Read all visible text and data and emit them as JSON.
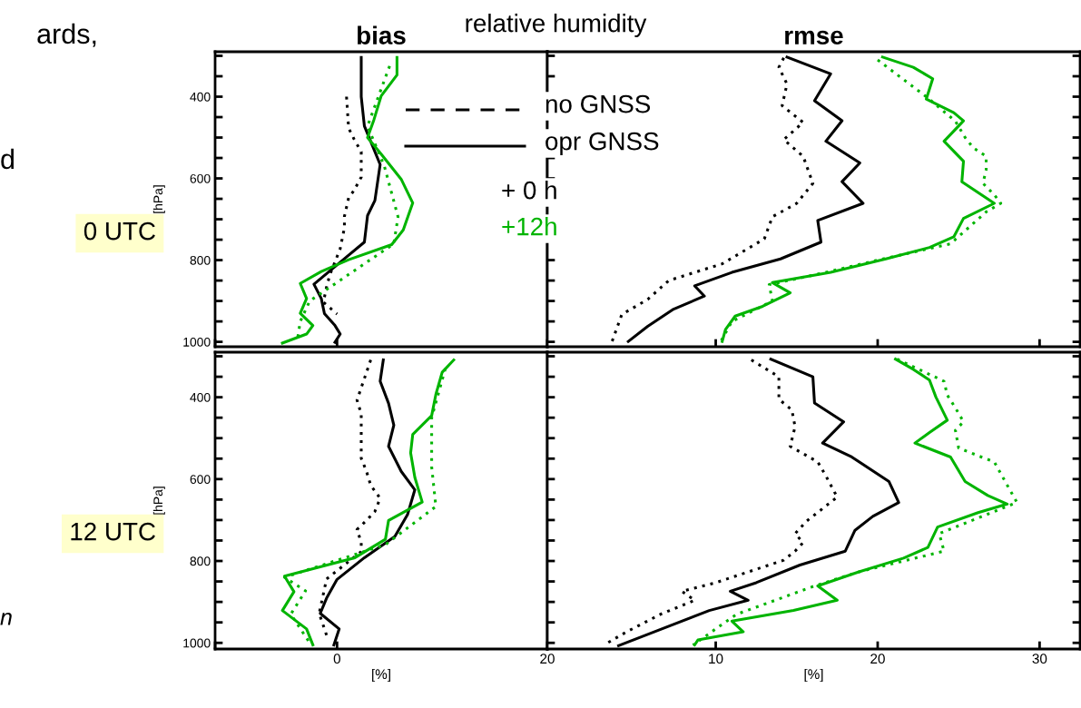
{
  "chart_data": [
    {
      "type": "line",
      "title": "bias",
      "ylabel": "[hPa]",
      "xlim": [
        -11.6,
        20
      ],
      "xticks": [
        {
          "value": -11.6,
          "label": null
        },
        0,
        20
      ],
      "ylim": [
        1012,
        290
      ],
      "yticks": [
        {
          "value": 300,
          "label": null
        },
        {
          "value": 350,
          "label": null
        },
        400,
        {
          "value": 450,
          "label": null
        },
        {
          "value": 500,
          "label": null
        },
        {
          "value": 550,
          "label": null
        },
        600,
        {
          "value": 650,
          "label": null
        },
        {
          "value": 700,
          "label": null
        },
        {
          "value": 750,
          "label": null
        },
        800,
        {
          "value": 850,
          "label": null
        },
        {
          "value": 900,
          "label": null
        },
        {
          "value": 950,
          "label": null
        },
        1000
      ],
      "tick_labels": "y",
      "grid": false,
      "legend": false,
      "annotations": [
        "relative humidity",
        "no GNSS",
        "opr GNSS",
        "+ 0 h",
        "+12h",
        "0 UTC",
        "ards,",
        "d"
      ],
      "series": [
        {
          "color": "#000000",
          "line_style": "solid",
          "x": [
            2.3,
            2.3,
            2.6,
            4.1,
            3.6,
            2.9,
            2.6,
            0.87,
            -2.2,
            -1.5,
            -1.2,
            -0.2,
            0.3,
            -0.2
          ],
          "values": [
            304,
            400,
            472,
            566,
            654,
            691,
            756,
            793,
            859,
            894,
            931,
            960,
            981,
            1001
          ]
        },
        {
          "color": "#000000",
          "line_style": "dashed",
          "x": [
            0.9,
            1.1,
            1.6,
            2.3,
            2.3,
            1.6,
            1.1,
            0.7,
            0.7,
            0.3,
            -0.7,
            -1.0,
            -1.3,
            0.0
          ],
          "values": [
            400,
            477,
            503,
            535,
            597,
            630,
            648,
            693,
            721,
            772,
            837,
            866,
            903,
            932
          ]
        },
        {
          "color": "#00b400",
          "line_style": "solid",
          "x": [
            5.7,
            5.7,
            4.2,
            3.5,
            2.9,
            4.3,
            6.1,
            7.2,
            6.3,
            5.2,
            1.1,
            -1.5,
            -3.5,
            -2.9,
            -3.5,
            -2.3,
            -2.9,
            -5.2
          ],
          "values": [
            304,
            347,
            398,
            457,
            500,
            544,
            602,
            660,
            726,
            762,
            799,
            828,
            857,
            894,
            930,
            960,
            981,
            1003
          ]
        },
        {
          "color": "#00b400",
          "line_style": "dashed",
          "x": [
            5.0,
            4.1,
            2.9,
            4.5,
            5.8,
            5.4,
            -2.6,
            -3.5,
            -3.8
          ],
          "values": [
            325,
            388,
            472,
            570,
            694,
            760,
            900,
            950,
            1000
          ]
        }
      ]
    },
    {
      "type": "line",
      "title": "rmse",
      "xlim": [
        -0.4,
        32.5
      ],
      "xticks": [
        10,
        20,
        30
      ],
      "ylim": [
        1012,
        290
      ],
      "yticks": [
        {
          "value": 300,
          "label": null
        },
        {
          "value": 350,
          "label": null
        },
        {
          "value": 400,
          "label": null
        },
        {
          "value": 450,
          "label": null
        },
        {
          "value": 500,
          "label": null
        },
        {
          "value": 550,
          "label": null
        },
        {
          "value": 600,
          "label": null
        },
        {
          "value": 650,
          "label": null
        },
        {
          "value": 700,
          "label": null
        },
        {
          "value": 750,
          "label": null
        },
        {
          "value": 800,
          "label": null
        },
        {
          "value": 850,
          "label": null
        },
        {
          "value": 900,
          "label": null
        },
        {
          "value": 950,
          "label": null
        },
        {
          "value": 1000,
          "label": null
        }
      ],
      "tick_labels": false,
      "grid": false,
      "legend": false,
      "series": [
        {
          "color": "#000000",
          "line_style": "solid",
          "x": [
            14.4,
            17.1,
            16.1,
            17.8,
            16.8,
            18.9,
            17.8,
            19.1,
            16.3,
            16.5,
            14.0,
            11.0,
            8.7,
            9.3,
            7.4,
            5.8,
            4.6
          ],
          "values": [
            303,
            344,
            410,
            459,
            509,
            562,
            608,
            661,
            703,
            756,
            797,
            830,
            863,
            888,
            920,
            962,
            999
          ]
        },
        {
          "color": "#000000",
          "line_style": "dashed",
          "x": [
            14.2,
            13.9,
            14.4,
            14.1,
            15.4,
            14.2,
            15.4,
            16.0,
            15.0,
            13.5,
            13.0,
            10.4,
            7.1,
            5.8,
            4.2,
            3.9,
            3.6
          ],
          "values": [
            305,
            328,
            369,
            422,
            463,
            505,
            546,
            612,
            661,
            694,
            748,
            809,
            850,
            896,
            933,
            966,
            999
          ]
        },
        {
          "color": "#00b400",
          "line_style": "solid",
          "x": [
            20.3,
            22.2,
            23.4,
            23.0,
            24.7,
            25.3,
            24.1,
            25.3,
            25.2,
            26.4,
            27.2,
            25.3,
            24.7,
            23.2,
            20.5,
            17.1,
            13.5,
            14.6,
            12.9,
            11.2,
            10.6,
            10.4
          ],
          "values": [
            303,
            328,
            356,
            406,
            439,
            459,
            509,
            558,
            608,
            640,
            661,
            698,
            743,
            769,
            797,
            830,
            855,
            880,
            913,
            937,
            970,
            999
          ]
        },
        {
          "color": "#00b400",
          "line_style": "dashed",
          "x": [
            20.0,
            23.0,
            24.8,
            25.4,
            25.9,
            26.7,
            26.7,
            26.5,
            27.2,
            27.6,
            26.7,
            24.5,
            20.0,
            16.8,
            13.3,
            13.5,
            11.0,
            10.3
          ],
          "values": [
            310,
            400,
            460,
            500,
            525,
            546,
            579,
            612,
            640,
            661,
            682,
            760,
            800,
            830,
            860,
            900,
            950,
            1000
          ]
        }
      ]
    },
    {
      "type": "line",
      "ylabel": "[hPa]",
      "xlabel": "[%]",
      "xlim": [
        -11.6,
        20
      ],
      "xticks": [
        {
          "value": -11.6,
          "label": null
        },
        0,
        20
      ],
      "ylim": [
        1015,
        290
      ],
      "yticks": [
        {
          "value": 300,
          "label": null
        },
        {
          "value": 350,
          "label": null
        },
        400,
        {
          "value": 450,
          "label": null
        },
        {
          "value": 500,
          "label": null
        },
        {
          "value": 550,
          "label": null
        },
        600,
        {
          "value": 650,
          "label": null
        },
        {
          "value": 700,
          "label": null
        },
        {
          "value": 750,
          "label": null
        },
        800,
        {
          "value": 850,
          "label": null
        },
        {
          "value": 900,
          "label": null
        },
        {
          "value": 950,
          "label": null
        },
        1000
      ],
      "grid": false,
      "legend": false,
      "annotations": [
        "12 UTC",
        "n"
      ],
      "series": [
        {
          "color": "#000000",
          "line_style": "solid",
          "x": [
            4.4,
            4.1,
            4.9,
            5.4,
            4.9,
            6.1,
            7.4,
            6.7,
            5.5,
            2.6,
            0.0,
            -1.0,
            -1.6,
            0.2,
            -0.3
          ],
          "values": [
            309,
            361,
            415,
            468,
            520,
            581,
            626,
            687,
            740,
            792,
            845,
            891,
            928,
            966,
            1005
          ]
        },
        {
          "color": "#000000",
          "line_style": "dashed",
          "x": [
            3.2,
            1.9,
            2.3,
            2.3,
            2.3,
            2.3,
            2.8,
            3.2,
            4.1,
            3.6,
            2.8,
            1.9,
            2.3,
            2.3,
            -1.0,
            -1.7,
            -1.0
          ],
          "values": [
            309,
            407,
            441,
            472,
            518,
            549,
            581,
            615,
            647,
            679,
            701,
            723,
            755,
            777,
            844,
            928,
            981
          ]
        },
        {
          "color": "#00b400",
          "line_style": "solid",
          "x": [
            11.1,
            10.0,
            9.4,
            9.0,
            7.2,
            7.0,
            7.4,
            8.1,
            4.9,
            4.6,
            1.7,
            -5.0,
            -4.1,
            -5.2,
            -2.9,
            -2.3
          ],
          "values": [
            309,
            339,
            393,
            445,
            491,
            536,
            596,
            656,
            701,
            747,
            792,
            837,
            875,
            921,
            966,
            1005
          ]
        },
        {
          "color": "#00b400",
          "line_style": "dashed",
          "x": [
            10.3,
            9.0,
            9.0,
            9.4,
            4.6,
            -5.0,
            -3.0,
            -4.4,
            -2.6
          ],
          "values": [
            330,
            450,
            570,
            667,
            760,
            840,
            873,
            930,
            1000
          ]
        }
      ]
    },
    {
      "type": "line",
      "xlabel": "[%]",
      "xlim": [
        -0.4,
        32.5
      ],
      "xticks": [
        10,
        20,
        30
      ],
      "ylim": [
        1015,
        290
      ],
      "yticks": [
        {
          "value": 300,
          "label": null
        },
        {
          "value": 350,
          "label": null
        },
        {
          "value": 400,
          "label": null
        },
        {
          "value": 450,
          "label": null
        },
        {
          "value": 500,
          "label": null
        },
        {
          "value": 550,
          "label": null
        },
        {
          "value": 600,
          "label": null
        },
        {
          "value": 650,
          "label": null
        },
        {
          "value": 700,
          "label": null
        },
        {
          "value": 750,
          "label": null
        },
        {
          "value": 800,
          "label": null
        },
        {
          "value": 850,
          "label": null
        },
        {
          "value": 900,
          "label": null
        },
        {
          "value": 950,
          "label": null
        },
        {
          "value": 1000,
          "label": null
        }
      ],
      "tick_labels": "x",
      "grid": false,
      "legend": false,
      "series": [
        {
          "color": "#000000",
          "line_style": "solid",
          "x": [
            13.4,
            16.0,
            16.1,
            17.9,
            16.6,
            18.4,
            20.7,
            21.3,
            19.7,
            18.6,
            18.0,
            15.2,
            12.5,
            10.9,
            12.0,
            9.6,
            6.2,
            4.0
          ],
          "values": [
            307,
            350,
            414,
            460,
            512,
            546,
            606,
            657,
            691,
            725,
            776,
            810,
            853,
            874,
            896,
            921,
            973,
            1007
          ]
        },
        {
          "color": "#000000",
          "line_style": "dashed",
          "x": [
            12.2,
            13.9,
            13.9,
            14.7,
            14.9,
            14.6,
            16.3,
            16.8,
            17.5,
            15.6,
            14.9,
            15.4,
            14.9,
            14.2,
            10.0,
            7.9,
            8.7,
            6.6,
            4.5,
            3.1
          ],
          "values": [
            309,
            350,
            405,
            431,
            472,
            520,
            558,
            592,
            644,
            703,
            733,
            755,
            776,
            798,
            853,
            874,
            896,
            930,
            973,
            1005
          ]
        },
        {
          "color": "#00b400",
          "line_style": "solid",
          "x": [
            21.1,
            22.2,
            23.2,
            23.6,
            24.3,
            23.2,
            22.3,
            24.5,
            25.4,
            26.8,
            28.0,
            26.2,
            23.7,
            23.1,
            21.6,
            18.8,
            16.3,
            17.5,
            14.8,
            11.0,
            11.7,
            8.9,
            8.7
          ],
          "values": [
            307,
            332,
            358,
            400,
            456,
            486,
            512,
            546,
            606,
            640,
            661,
            682,
            717,
            767,
            793,
            827,
            861,
            896,
            921,
            947,
            973,
            993,
            1005
          ]
        },
        {
          "color": "#00b400",
          "line_style": "dashed",
          "x": [
            21.2,
            24.1,
            24.3,
            24.8,
            25.3,
            24.8,
            25.0,
            26.4,
            27.2,
            28.1,
            28.6,
            23.8,
            24.1,
            18.8,
            16.1,
            11.3,
            8.6
          ],
          "values": [
            307,
            361,
            395,
            426,
            460,
            481,
            524,
            546,
            558,
            622,
            657,
            733,
            776,
            827,
            861,
            930,
            1005
          ]
        }
      ]
    }
  ]
}
